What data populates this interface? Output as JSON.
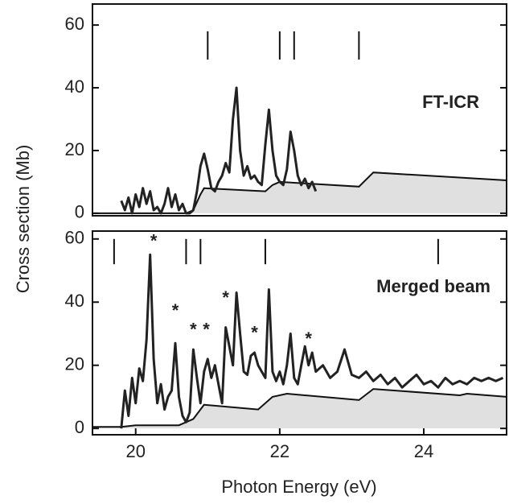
{
  "ylabel": "Cross section (Mb)",
  "xlabel": "Photon Energy (eV)",
  "chart_data": [
    {
      "type": "line",
      "label": "FT-ICR",
      "xlim": [
        19.4,
        25.15
      ],
      "ylim": [
        -0.8,
        66.7
      ],
      "yticks": [
        0,
        20,
        40,
        60
      ],
      "markers": [
        21.0,
        22.0,
        22.2,
        23.1
      ],
      "series": [
        {
          "type": "area",
          "color": "#e0e0e0",
          "x": [
            19.4,
            20.7,
            20.8,
            20.9,
            20.95,
            21.8,
            21.9,
            22.0,
            23.1,
            23.3,
            25.15
          ],
          "values": [
            0,
            0,
            1,
            6,
            8,
            7,
            9,
            10,
            8.5,
            13,
            10.5
          ]
        },
        {
          "type": "line",
          "color": "#222222",
          "x": [
            19.8,
            19.85,
            19.9,
            19.95,
            20.0,
            20.05,
            20.1,
            20.15,
            20.2,
            20.25,
            20.3,
            20.35,
            20.4,
            20.45,
            20.5,
            20.55,
            20.6,
            20.65,
            20.7,
            20.75,
            20.8,
            20.85,
            20.9,
            20.95,
            21.0,
            21.05,
            21.1,
            21.15,
            21.2,
            21.25,
            21.3,
            21.35,
            21.4,
            21.45,
            21.5,
            21.55,
            21.6,
            21.65,
            21.7,
            21.75,
            21.8,
            21.85,
            21.9,
            21.95,
            22.0,
            22.05,
            22.1,
            22.15,
            22.2,
            22.25,
            22.3,
            22.35,
            22.4,
            22.45,
            22.5
          ],
          "values": [
            4,
            1,
            5,
            0,
            6,
            2,
            8,
            3,
            7,
            1,
            2,
            0,
            3,
            8,
            2,
            6,
            1,
            3,
            0,
            0,
            1,
            7,
            15,
            19,
            14,
            8,
            7,
            10,
            12,
            16,
            13,
            30,
            40,
            20,
            12,
            15,
            11,
            12,
            10,
            9,
            22,
            33,
            20,
            12,
            10,
            9,
            14,
            26,
            20,
            12,
            9,
            11,
            8,
            10,
            7
          ]
        }
      ]
    },
    {
      "type": "line",
      "label": "Merged beam",
      "xlim": [
        19.4,
        25.15
      ],
      "ylim": [
        -2,
        62.5
      ],
      "yticks": [
        0,
        20,
        40,
        60
      ],
      "xticks": [
        20,
        22,
        24
      ],
      "markers": [
        19.7,
        20.7,
        20.9,
        21.8,
        24.2
      ],
      "annotations": [
        {
          "text": "*",
          "x": 20.25,
          "y": 59
        },
        {
          "text": "*",
          "x": 20.55,
          "y": 37
        },
        {
          "text": "*",
          "x": 20.8,
          "y": 31
        },
        {
          "text": "*",
          "x": 20.98,
          "y": 31
        },
        {
          "text": "*",
          "x": 21.25,
          "y": 41
        },
        {
          "text": "*",
          "x": 21.65,
          "y": 30
        },
        {
          "text": "*",
          "x": 22.4,
          "y": 28
        }
      ],
      "series": [
        {
          "type": "area",
          "color": "#e0e0e0",
          "x": [
            19.4,
            19.8,
            20.0,
            20.6,
            20.8,
            20.95,
            21.7,
            21.9,
            22.1,
            23.1,
            23.3,
            24.5,
            24.6,
            25.15
          ],
          "values": [
            0.5,
            0.5,
            1,
            1,
            3,
            7.5,
            6,
            10,
            11,
            9,
            12.5,
            10.5,
            11,
            10
          ]
        },
        {
          "type": "line",
          "color": "#222222",
          "x": [
            19.8,
            19.85,
            19.9,
            19.95,
            20.0,
            20.05,
            20.1,
            20.15,
            20.2,
            20.25,
            20.3,
            20.35,
            20.4,
            20.45,
            20.5,
            20.55,
            20.6,
            20.65,
            20.7,
            20.75,
            20.8,
            20.85,
            20.9,
            20.95,
            21.0,
            21.05,
            21.1,
            21.15,
            21.2,
            21.25,
            21.3,
            21.35,
            21.4,
            21.45,
            21.5,
            21.55,
            21.6,
            21.65,
            21.7,
            21.75,
            21.8,
            21.85,
            21.9,
            21.95,
            22.0,
            22.05,
            22.1,
            22.15,
            22.2,
            22.25,
            22.3,
            22.35,
            22.4,
            22.45,
            22.5,
            22.6,
            22.7,
            22.8,
            22.9,
            23.0,
            23.1,
            23.2,
            23.3,
            23.4,
            23.5,
            23.6,
            23.7,
            23.8,
            23.9,
            24.0,
            24.1,
            24.2,
            24.3,
            24.4,
            24.5,
            24.6,
            24.7,
            24.8,
            24.9,
            25.0,
            25.1
          ],
          "values": [
            0,
            12,
            4,
            16,
            8,
            19,
            15,
            28,
            55,
            22,
            8,
            14,
            6,
            10,
            12,
            27,
            10,
            4,
            2,
            5,
            25,
            16,
            8,
            18,
            22,
            16,
            20,
            14,
            8,
            32,
            26,
            20,
            43,
            30,
            18,
            17,
            23,
            24,
            20,
            18,
            16,
            44,
            18,
            15,
            18,
            14,
            20,
            30,
            16,
            14,
            20,
            26,
            20,
            24,
            18,
            20,
            16,
            18,
            25,
            17,
            16,
            18,
            15,
            17,
            14,
            16,
            13,
            15,
            17,
            14,
            15,
            13,
            16,
            14,
            15,
            14,
            16,
            15,
            16,
            15,
            16
          ]
        }
      ]
    }
  ]
}
